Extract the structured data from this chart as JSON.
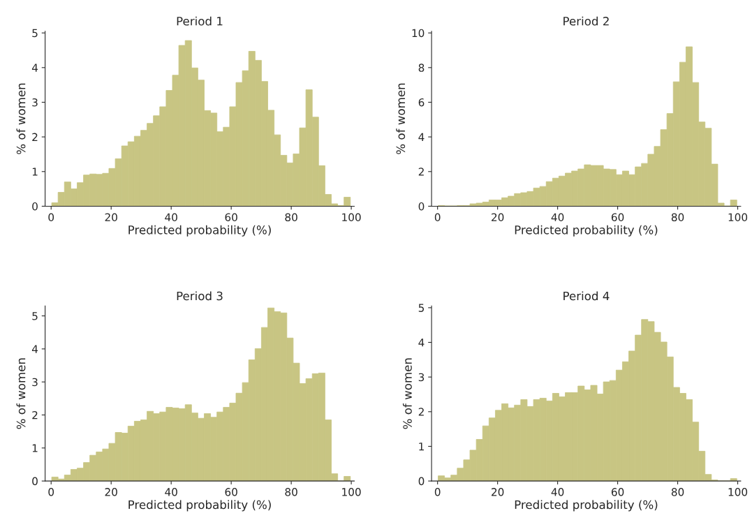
{
  "chart_data": [
    {
      "type": "histogram",
      "title": "Period 1",
      "xlabel": "Predicted probability (%)",
      "ylabel": "% of women",
      "color": "#c8c583",
      "xlim": [
        -2,
        101
      ],
      "ylim": [
        0,
        5.05
      ],
      "xticks": [
        0,
        20,
        40,
        60,
        80,
        100
      ],
      "yticks": [
        0,
        1,
        2,
        3,
        4,
        5
      ],
      "bins": [
        0.2,
        2.32,
        4.43,
        6.55,
        8.67,
        10.79,
        12.9,
        15.02,
        17.14,
        19.25,
        21.37,
        23.49,
        25.6,
        27.72,
        29.84,
        31.96,
        34.07,
        36.19,
        38.31,
        40.42,
        42.54,
        44.66,
        46.77,
        48.89,
        51.01,
        53.13,
        55.24,
        57.36,
        59.48,
        61.59,
        63.71,
        65.83,
        67.94,
        70.06,
        72.18,
        74.3,
        76.41,
        78.53,
        80.65,
        82.76,
        84.88,
        87.0,
        89.11,
        91.23,
        93.35,
        95.47,
        97.58,
        99.7
      ],
      "values": [
        0.1,
        0.4,
        0.7,
        0.5,
        0.68,
        0.9,
        0.93,
        0.92,
        0.95,
        1.09,
        1.37,
        1.74,
        1.86,
        2.02,
        2.19,
        2.39,
        2.61,
        2.87,
        3.34,
        3.78,
        4.64,
        4.78,
        3.99,
        3.64,
        2.76,
        2.69,
        2.15,
        2.28,
        2.87,
        3.57,
        3.91,
        4.47,
        4.21,
        3.6,
        2.77,
        2.06,
        1.47,
        1.25,
        1.51,
        2.26,
        3.36,
        2.57,
        1.17,
        0.34,
        0.07,
        0.02,
        0.26
      ]
    },
    {
      "type": "histogram",
      "title": "Period 2",
      "xlabel": "Predicted probability (%)",
      "ylabel": "% of women",
      "color": "#c8c583",
      "xlim": [
        -2,
        101
      ],
      "ylim": [
        0,
        10.1
      ],
      "xticks": [
        0,
        20,
        40,
        60,
        80,
        100
      ],
      "yticks": [
        0,
        2,
        4,
        6,
        8,
        10
      ],
      "bins": [
        0.2,
        2.32,
        4.43,
        6.55,
        8.67,
        10.79,
        12.9,
        15.02,
        17.14,
        19.25,
        21.37,
        23.49,
        25.6,
        27.72,
        29.84,
        31.96,
        34.07,
        36.19,
        38.31,
        40.42,
        42.54,
        44.66,
        46.77,
        48.89,
        51.01,
        53.13,
        55.24,
        57.36,
        59.48,
        61.59,
        63.71,
        65.83,
        67.94,
        70.06,
        72.18,
        74.3,
        76.41,
        78.53,
        80.65,
        82.76,
        84.88,
        87.0,
        89.11,
        91.23,
        93.35,
        95.47,
        97.58,
        99.7
      ],
      "values": [
        0.04,
        0.02,
        0.02,
        0.04,
        0.04,
        0.14,
        0.18,
        0.24,
        0.36,
        0.36,
        0.49,
        0.58,
        0.73,
        0.78,
        0.85,
        1.05,
        1.14,
        1.42,
        1.62,
        1.74,
        1.91,
        2.03,
        2.15,
        2.39,
        2.35,
        2.35,
        2.15,
        2.12,
        1.82,
        2.03,
        1.82,
        2.27,
        2.47,
        3.0,
        3.45,
        4.42,
        5.35,
        7.18,
        8.31,
        9.2,
        7.14,
        4.86,
        4.5,
        2.43,
        0.18,
        0.02,
        0.36
      ]
    },
    {
      "type": "histogram",
      "title": "Period 3",
      "xlabel": "Predicted probability (%)",
      "ylabel": "% of women",
      "color": "#c8c583",
      "xlim": [
        -2,
        101
      ],
      "ylim": [
        0,
        5.3
      ],
      "xticks": [
        0,
        20,
        40,
        60,
        80,
        100
      ],
      "yticks": [
        0,
        1,
        2,
        3,
        4,
        5
      ],
      "bins": [
        0.2,
        2.32,
        4.43,
        6.55,
        8.67,
        10.79,
        12.9,
        15.02,
        17.14,
        19.25,
        21.37,
        23.49,
        25.6,
        27.72,
        29.84,
        31.96,
        34.07,
        36.19,
        38.31,
        40.42,
        42.54,
        44.66,
        46.77,
        48.89,
        51.01,
        53.13,
        55.24,
        57.36,
        59.48,
        61.59,
        63.71,
        65.83,
        67.94,
        70.06,
        72.18,
        74.3,
        76.41,
        78.53,
        80.65,
        82.76,
        84.88,
        87.0,
        89.11,
        91.23,
        93.35,
        95.47,
        97.58,
        99.7
      ],
      "values": [
        0.12,
        0.06,
        0.18,
        0.35,
        0.39,
        0.56,
        0.78,
        0.88,
        0.97,
        1.14,
        1.47,
        1.45,
        1.66,
        1.81,
        1.85,
        2.11,
        2.04,
        2.09,
        2.23,
        2.21,
        2.19,
        2.31,
        2.06,
        1.9,
        2.04,
        1.93,
        2.09,
        2.23,
        2.36,
        2.66,
        2.98,
        3.67,
        4.01,
        4.65,
        5.24,
        5.13,
        5.09,
        4.33,
        3.57,
        2.95,
        3.1,
        3.25,
        3.27,
        1.85,
        0.22,
        null,
        0.14
      ]
    },
    {
      "type": "histogram",
      "title": "Period 4",
      "xlabel": "Predicted probability (%)",
      "ylabel": "% of women",
      "color": "#c8c583",
      "xlim": [
        -2,
        101
      ],
      "ylim": [
        0,
        5.05
      ],
      "xticks": [
        0,
        20,
        40,
        60,
        80,
        100
      ],
      "yticks": [
        0,
        1,
        2,
        3,
        4,
        5
      ],
      "bins": [
        0.2,
        2.32,
        4.43,
        6.55,
        8.67,
        10.79,
        12.9,
        15.02,
        17.14,
        19.25,
        21.37,
        23.49,
        25.6,
        27.72,
        29.84,
        31.96,
        34.07,
        36.19,
        38.31,
        40.42,
        42.54,
        44.66,
        46.77,
        48.89,
        51.01,
        53.13,
        55.24,
        57.36,
        59.48,
        61.59,
        63.71,
        65.83,
        67.94,
        70.06,
        72.18,
        74.3,
        76.41,
        78.53,
        80.65,
        82.76,
        84.88,
        87.0,
        89.11,
        91.23,
        93.35,
        95.47,
        97.58,
        99.7
      ],
      "values": [
        0.15,
        0.09,
        0.17,
        0.37,
        0.61,
        0.89,
        1.2,
        1.59,
        1.82,
        2.04,
        2.23,
        2.11,
        2.19,
        2.35,
        2.15,
        2.35,
        2.39,
        2.31,
        2.53,
        2.43,
        2.55,
        2.55,
        2.74,
        2.63,
        2.76,
        2.51,
        2.86,
        2.9,
        3.2,
        3.44,
        3.75,
        4.21,
        4.66,
        4.6,
        4.29,
        4.01,
        3.58,
        2.7,
        2.53,
        2.35,
        1.7,
        0.86,
        0.19,
        0.03,
        0,
        0,
        0.07
      ]
    }
  ]
}
